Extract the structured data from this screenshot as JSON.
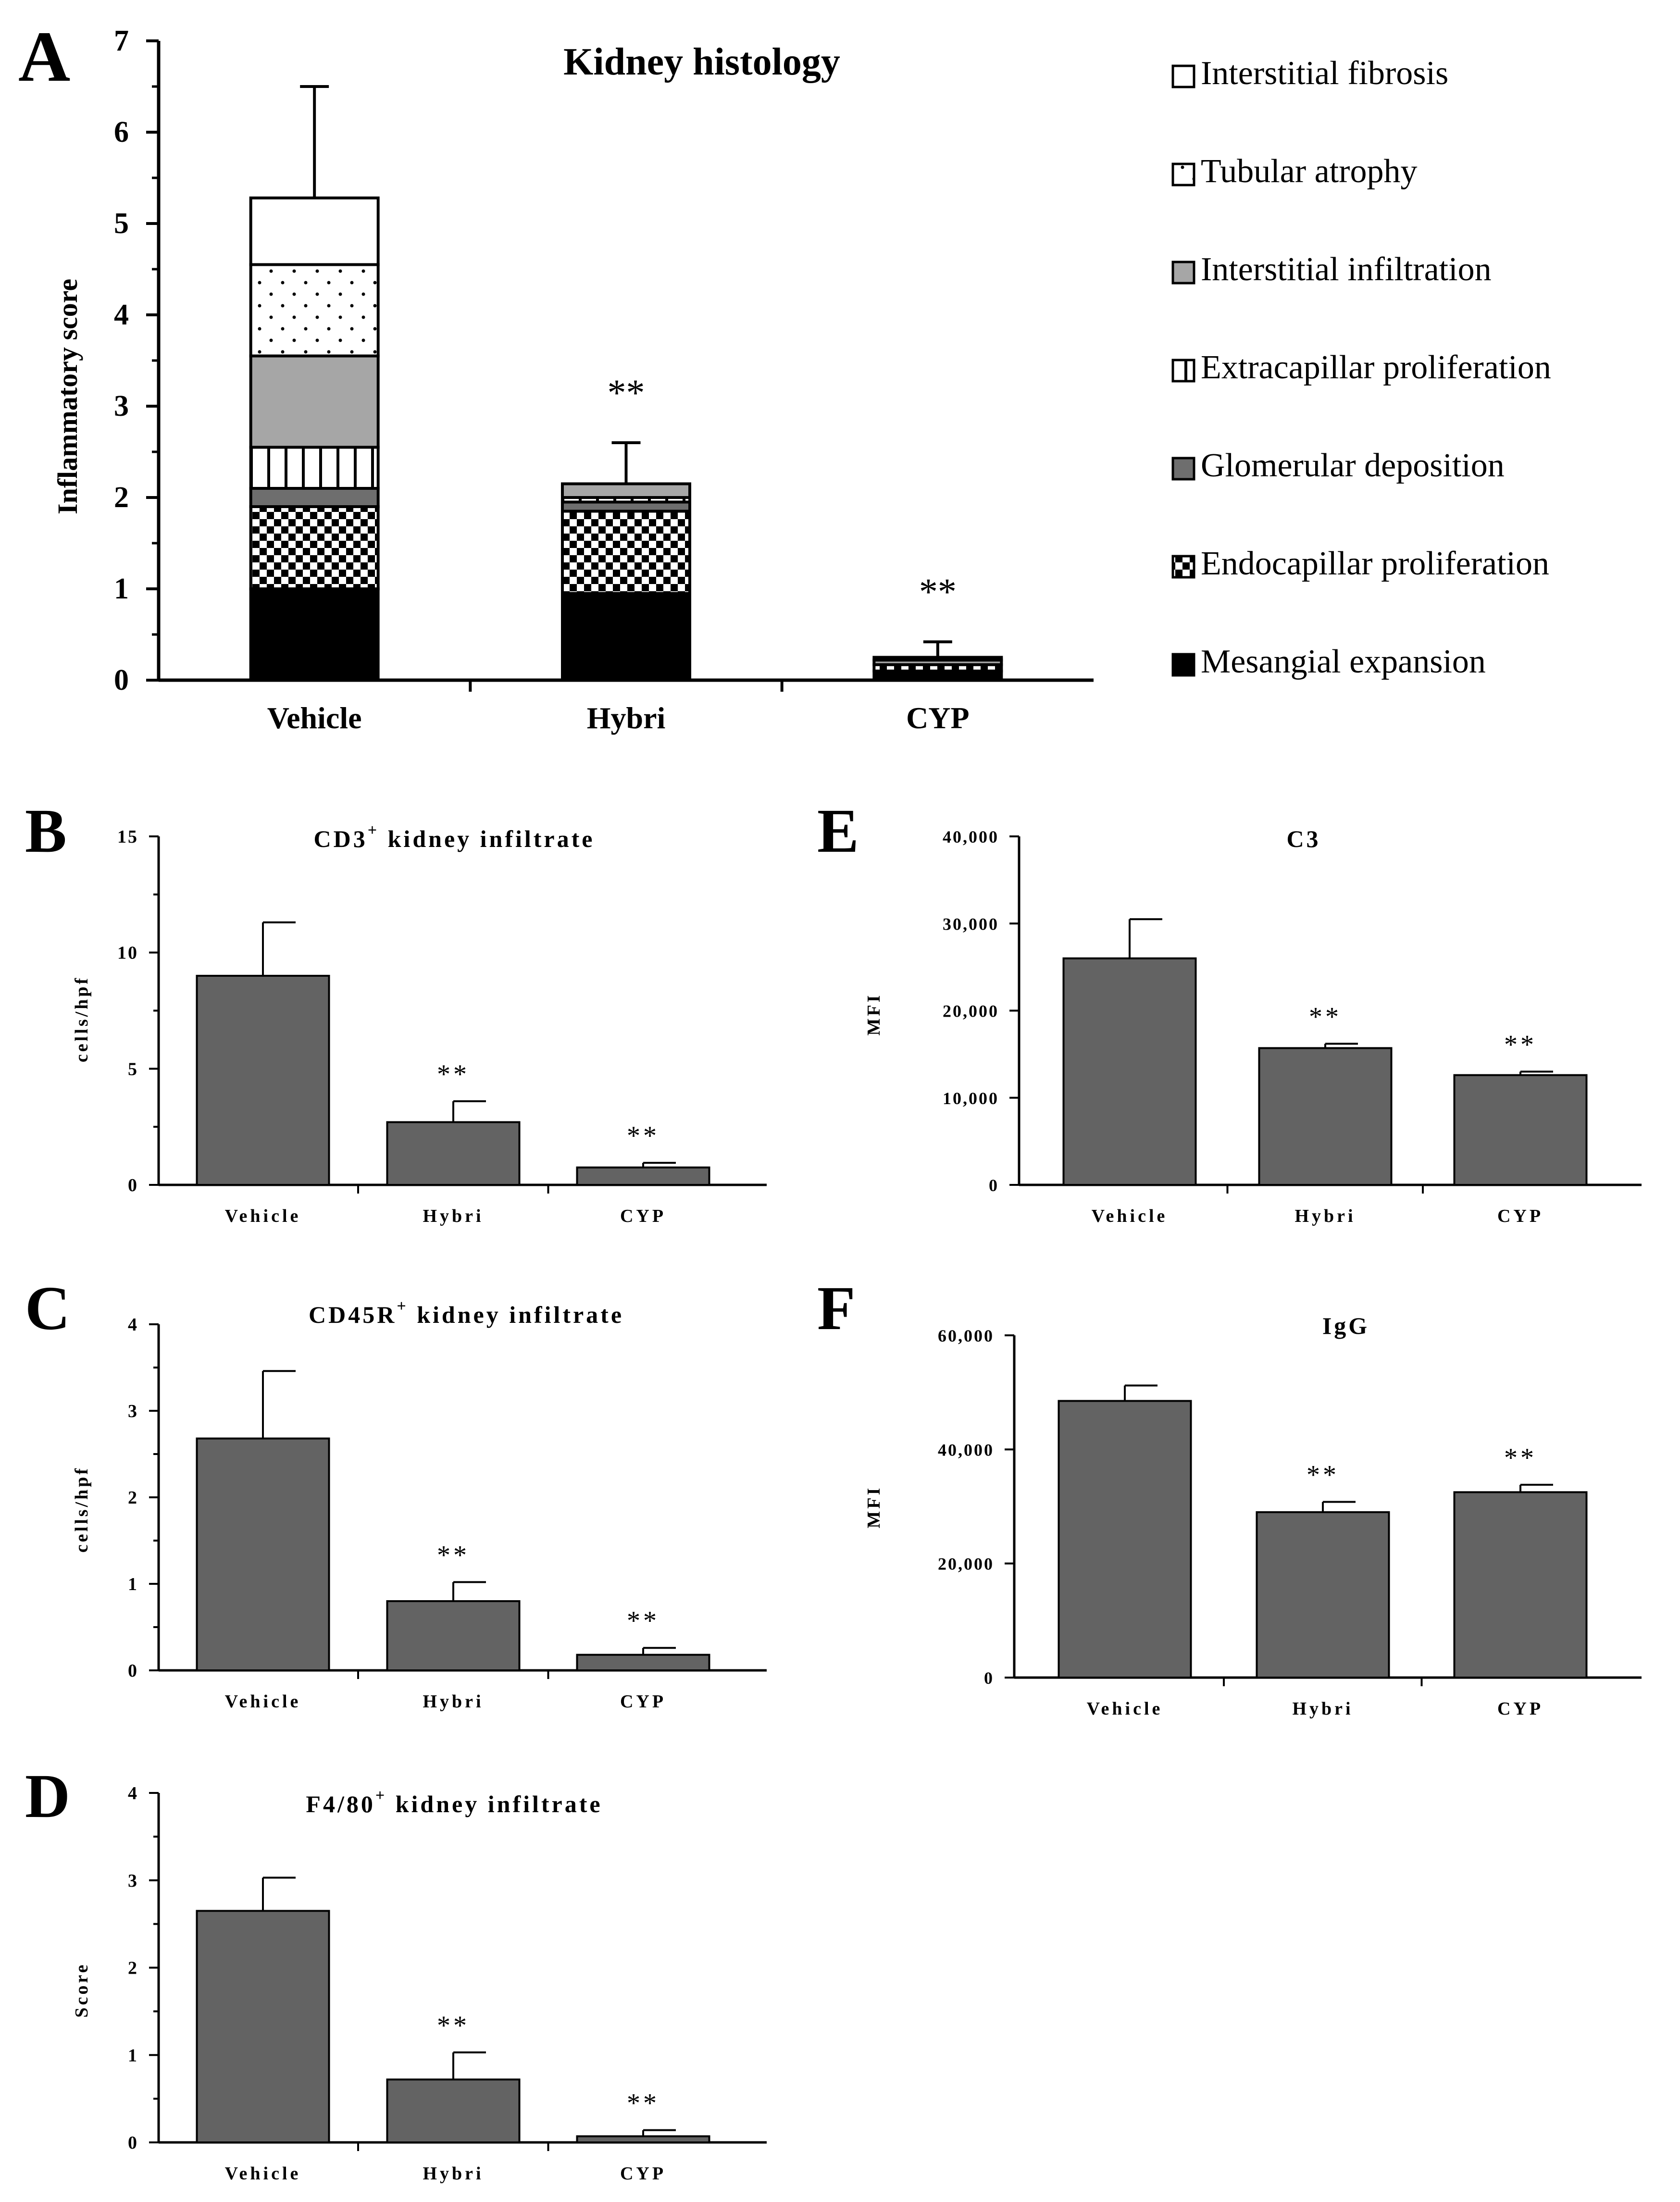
{
  "colors": {
    "black": "#000000",
    "bar_gray": "#636363",
    "light_gray": "#a6a6a6",
    "mid_gray": "#6e6e6e",
    "white": "#ffffff"
  },
  "chart_data": [
    {
      "id": "A",
      "panel_label": "A",
      "type": "bar",
      "stacked": true,
      "title": "Kidney histology",
      "xlabel": "",
      "ylabel": "Inflammatory score",
      "categories": [
        "Vehicle",
        "Hybri",
        "CYP"
      ],
      "ylim": [
        0,
        7
      ],
      "yticks": [
        "0",
        "1",
        "2",
        "3",
        "4",
        "5",
        "6",
        "7"
      ],
      "series": [
        {
          "name": "Mesangial expansion",
          "pattern": "solid-black",
          "values": [
            1.0,
            0.95,
            0.1
          ]
        },
        {
          "name": "Endocapillar proliferation",
          "pattern": "checker",
          "values": [
            0.9,
            0.9,
            0.07
          ]
        },
        {
          "name": "Glomerular deposition",
          "pattern": "solid-darkgray",
          "values": [
            0.2,
            0.1,
            0.0
          ]
        },
        {
          "name": "Extracapillar proliferation",
          "pattern": "vertical-stripes",
          "values": [
            0.45,
            0.05,
            0.0
          ]
        },
        {
          "name": "Interstitial infiltration",
          "pattern": "solid-lightgray",
          "values": [
            1.0,
            0.15,
            0.05
          ]
        },
        {
          "name": "Tubular atrophy",
          "pattern": "dots",
          "values": [
            1.0,
            0.0,
            0.0
          ]
        },
        {
          "name": "Interstitial fibrosis",
          "pattern": "white",
          "values": [
            0.73,
            0.0,
            0.03
          ]
        }
      ],
      "totals": [
        5.28,
        2.15,
        0.25
      ],
      "error_upper": [
        6.5,
        2.6,
        0.42
      ],
      "annotations": [
        "",
        "**",
        "**"
      ],
      "legend_position": "right",
      "legend_order": [
        "Interstitial fibrosis",
        "Tubular atrophy",
        "Interstitial infiltration",
        "Extracapillar proliferation",
        "Glomerular deposition",
        "Endocapillar proliferation",
        "Mesangial expansion"
      ]
    },
    {
      "id": "B",
      "panel_label": "B",
      "type": "bar",
      "title": "CD3",
      "title_sup": "+",
      "title_rest": " kidney infiltrate",
      "ylabel": "cells/hpf",
      "categories": [
        "Vehicle",
        "Hybri",
        "CYP"
      ],
      "values": [
        9.0,
        2.7,
        0.75
      ],
      "error_upper": [
        11.3,
        3.6,
        0.95
      ],
      "annotations": [
        "",
        "**",
        "**"
      ],
      "ylim": [
        0,
        15
      ],
      "yticks": [
        "0",
        "5",
        "10",
        "15"
      ],
      "minor_ticks": true
    },
    {
      "id": "C",
      "panel_label": "C",
      "type": "bar",
      "title": "CD45R",
      "title_sup": "+",
      "title_rest": " kidney infiltrate",
      "ylabel": "cells/hpf",
      "categories": [
        "Vehicle",
        "Hybri",
        "CYP"
      ],
      "values": [
        2.68,
        0.8,
        0.18
      ],
      "error_upper": [
        3.46,
        1.02,
        0.26
      ],
      "annotations": [
        "",
        "**",
        "**"
      ],
      "ylim": [
        0,
        4
      ],
      "yticks": [
        "0",
        "1",
        "2",
        "3",
        "4"
      ],
      "minor_ticks": true
    },
    {
      "id": "D",
      "panel_label": "D",
      "type": "bar",
      "title": "F4/80",
      "title_sup": "+",
      "title_rest": " kidney infiltrate",
      "ylabel": "Score",
      "categories": [
        "Vehicle",
        "Hybri",
        "CYP"
      ],
      "values": [
        2.65,
        0.72,
        0.07
      ],
      "error_upper": [
        3.03,
        1.03,
        0.14
      ],
      "annotations": [
        "",
        "**",
        "**"
      ],
      "ylim": [
        0,
        4
      ],
      "yticks": [
        "0",
        "1",
        "2",
        "3",
        "4"
      ],
      "minor_ticks": true
    },
    {
      "id": "E",
      "panel_label": "E",
      "type": "bar",
      "title": "C3",
      "title_sup": "",
      "title_rest": "",
      "ylabel": "MFI",
      "categories": [
        "Vehicle",
        "Hybri",
        "CYP"
      ],
      "values": [
        26000,
        15700,
        12600
      ],
      "error_upper": [
        30500,
        16200,
        13000
      ],
      "annotations": [
        "",
        "**",
        "**"
      ],
      "ylim": [
        0,
        40000
      ],
      "yticks": [
        "0",
        "10,000",
        "20,000",
        "30,000",
        "40,000"
      ],
      "minor_ticks": false
    },
    {
      "id": "F",
      "panel_label": "F",
      "type": "bar",
      "title": "IgG",
      "title_sup": "",
      "title_rest": "",
      "ylabel": "MFI",
      "categories": [
        "Vehicle",
        "Hybri",
        "CYP"
      ],
      "values": [
        48500,
        29000,
        32500
      ],
      "error_upper": [
        51200,
        30800,
        33800
      ],
      "annotations": [
        "",
        "**",
        "**"
      ],
      "ylim": [
        0,
        60000
      ],
      "yticks": [
        "0",
        "20,000",
        "40,000",
        "60,000"
      ],
      "minor_ticks": false
    }
  ]
}
